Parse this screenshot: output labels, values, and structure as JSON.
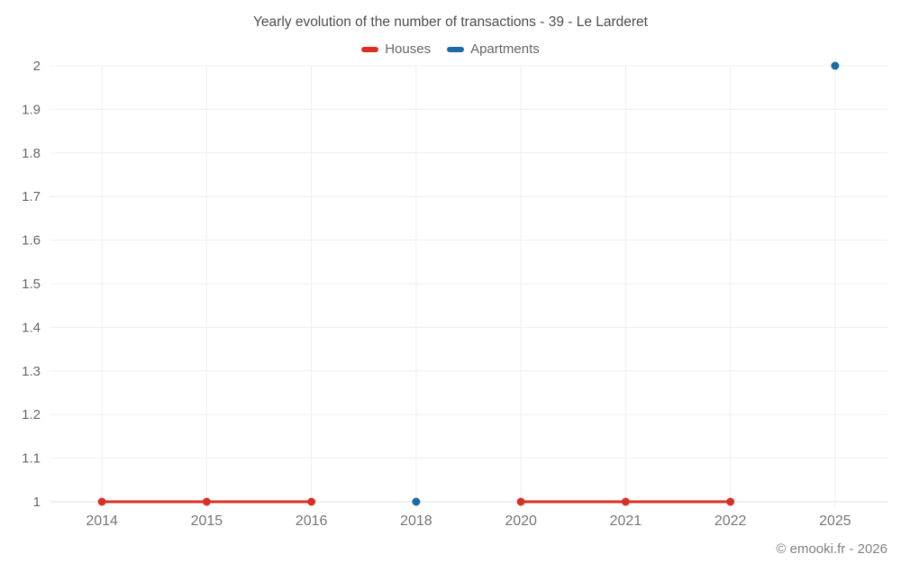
{
  "page": {
    "attribution": "© emooki.fr - 2026"
  },
  "chart_data": {
    "type": "line",
    "title": "Yearly evolution of the number of transactions - 39 - Le Larderet",
    "categories": [
      "2014",
      "2015",
      "2016",
      "2018",
      "2020",
      "2021",
      "2022",
      "2025"
    ],
    "series": [
      {
        "name": "Houses",
        "color": "#d93025",
        "values": [
          1,
          1,
          1,
          null,
          1,
          1,
          1,
          null
        ]
      },
      {
        "name": "Apartments",
        "color": "#1a6ba6",
        "values": [
          null,
          null,
          null,
          1,
          null,
          null,
          null,
          2
        ]
      }
    ],
    "xlabel": "",
    "ylabel": "",
    "ylim": [
      1,
      2
    ],
    "ytick_step": 0.1,
    "ytick_labels": [
      "1",
      "1.1",
      "1.2",
      "1.3",
      "1.4",
      "1.5",
      "1.6",
      "1.7",
      "1.8",
      "1.9",
      "2"
    ],
    "grid": "both",
    "legend_position": "top",
    "marker_radius": 4.5,
    "line_width": 3
  }
}
